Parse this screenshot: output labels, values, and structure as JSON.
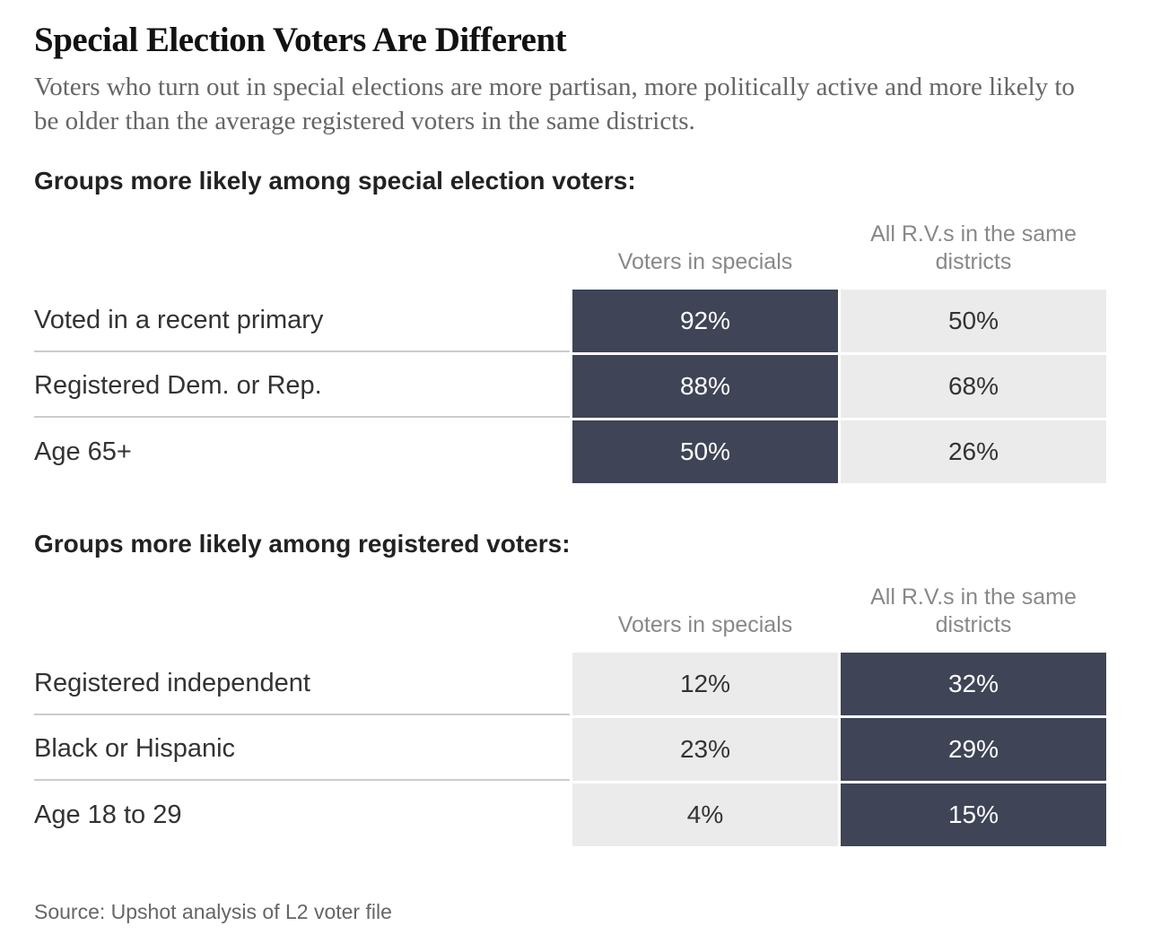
{
  "title": "Special Election Voters Are Different",
  "subtitle": "Voters who turn out in special elections are more partisan, more politically active and more likely to be older than the average registered voters in the same districts.",
  "tables": [
    {
      "heading": "Groups more likely among special election voters:",
      "columns": [
        "Voters in specials",
        "All R.V.s in the same districts"
      ],
      "highlight_column": 0,
      "rows": [
        [
          "Voted in a recent primary",
          "92%",
          "50%"
        ],
        [
          "Registered Dem. or Rep.",
          "88%",
          "68%"
        ],
        [
          "Age 65+",
          "50%",
          "26%"
        ]
      ]
    },
    {
      "heading": "Groups more likely among registered voters:",
      "columns": [
        "Voters in specials",
        "All R.V.s in the same districts"
      ],
      "highlight_column": 1,
      "rows": [
        [
          "Registered independent",
          "12%",
          "32%"
        ],
        [
          "Black or Hispanic",
          "23%",
          "29%"
        ],
        [
          "Age 18 to 29",
          "4%",
          "15%"
        ]
      ]
    }
  ],
  "highlight_color": "#3f4456",
  "base_color": "#ebebeb",
  "source": "Source: Upshot analysis of L2 voter file"
}
